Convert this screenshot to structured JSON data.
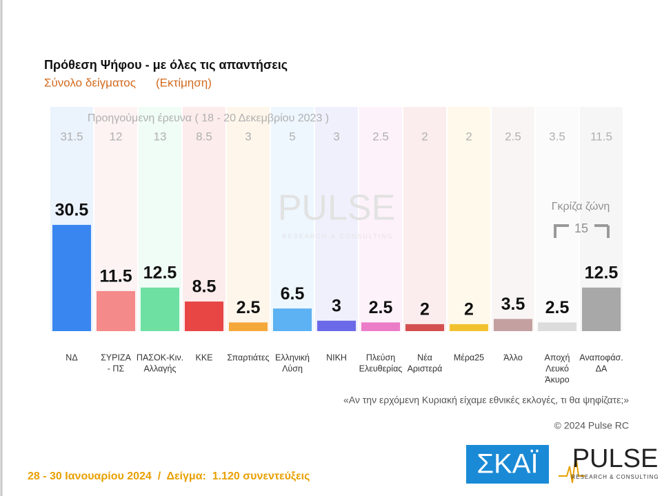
{
  "chart_data": {
    "type": "bar",
    "title": "Πρόθεση Ψήφου - με όλες τις απαντήσεις",
    "subtitle": [
      "Σύνολο δείγματος",
      "(Εκτίμηση)"
    ],
    "categories": [
      [
        "ΝΔ"
      ],
      [
        "ΣΥΡΙΖΑ",
        "- ΠΣ"
      ],
      [
        "ΠΑΣΟΚ-Κιν.",
        "Αλλαγής"
      ],
      [
        "ΚΚΕ"
      ],
      [
        "Σπαρτιάτες"
      ],
      [
        "Ελληνική",
        "Λύση"
      ],
      [
        "ΝΙΚΗ"
      ],
      [
        "Πλεύση",
        "Ελευθερίας"
      ],
      [
        "Νέα",
        "Αριστερά"
      ],
      [
        "Μέρα25"
      ],
      [
        "Άλλο"
      ],
      [
        "Αποχή",
        "Λευκό",
        "Άκυρο"
      ],
      [
        "Αναποφάσ.",
        "ΔΑ"
      ]
    ],
    "values": [
      30.5,
      11.5,
      12.5,
      8.5,
      2.5,
      6.5,
      3,
      2.5,
      2,
      2,
      3.5,
      2.5,
      12.5
    ],
    "colors": [
      "#3a86f0",
      "#f48a8a",
      "#6ee0a2",
      "#e84545",
      "#f5a83a",
      "#5cb2f2",
      "#6a6ae8",
      "#ea7cc8",
      "#d45050",
      "#f2c22e",
      "#c4a0a0",
      "#dcdcdc",
      "#a8a8a8"
    ],
    "previous": {
      "label": "Προηγούμενη έρευνα ( 18 - 20 Δεκεμβρίου 2023 )",
      "values": [
        31.5,
        12,
        13,
        8.5,
        3,
        5,
        3,
        2.5,
        2,
        2,
        2.5,
        3.5,
        11.5
      ]
    },
    "grey_zone": {
      "label": "Γκρίζα ζώνη",
      "value": 15
    },
    "question": "«Αν την ερχόμενη Κυριακή είχαμε εθνικές εκλογές, τι θα ψηφίζατε;»",
    "copyright": "© 2024 Pulse RC"
  },
  "footer": "28 - 30 Ιανουαρίου 2024  /  Δείγμα:  1.120 συνεντεύξεις",
  "logos": {
    "channel": "ΣΚΑΪ",
    "pollster": "PULSE",
    "pollster_sub": "RESEARCH & CONSULTING"
  }
}
